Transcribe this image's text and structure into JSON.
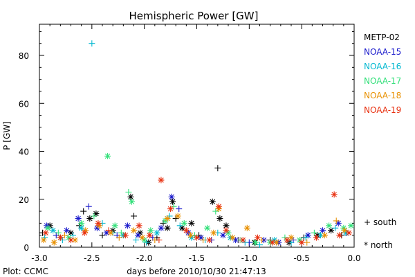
{
  "chart_data": {
    "type": "scatter",
    "title": "Hemispheric Power [GW]",
    "xlabel": "days before 2010/10/30 21:47:13",
    "ylabel": "P [GW]",
    "xlim": [
      -3.0,
      0.0
    ],
    "ylim": [
      0,
      93
    ],
    "x_ticks": [
      "-3.0",
      "-2.5",
      "-2.0",
      "-1.5",
      "-1.0",
      "-0.5",
      "0.0"
    ],
    "y_ticks": [
      "0",
      "20",
      "40",
      "60",
      "80"
    ],
    "grid": false,
    "legend_position": "right",
    "markers": {
      "south": {
        "symbol": "+",
        "label": "+ south"
      },
      "north": {
        "symbol": "*",
        "label": "* north"
      }
    },
    "footer": "Plot: CCMC",
    "series": [
      {
        "name": "METP-02",
        "color": "#000000",
        "points": [
          {
            "x": -2.97,
            "y": 6,
            "h": "south"
          },
          {
            "x": -2.9,
            "y": 9,
            "h": "north"
          },
          {
            "x": -2.8,
            "y": 4,
            "h": "south"
          },
          {
            "x": -2.7,
            "y": 6,
            "h": "north"
          },
          {
            "x": -2.62,
            "y": 9,
            "h": "south"
          },
          {
            "x": -2.58,
            "y": 15,
            "h": "south"
          },
          {
            "x": -2.52,
            "y": 12,
            "h": "north"
          },
          {
            "x": -2.46,
            "y": 14,
            "h": "north"
          },
          {
            "x": -2.4,
            "y": 5,
            "h": "south"
          },
          {
            "x": -2.3,
            "y": 7,
            "h": "north"
          },
          {
            "x": -2.13,
            "y": 21,
            "h": "north"
          },
          {
            "x": -2.1,
            "y": 13,
            "h": "south"
          },
          {
            "x": -2.04,
            "y": 6,
            "h": "north"
          },
          {
            "x": -1.96,
            "y": 2,
            "h": "north"
          },
          {
            "x": -1.88,
            "y": 4,
            "h": "south"
          },
          {
            "x": -1.82,
            "y": 10,
            "h": "south"
          },
          {
            "x": -1.78,
            "y": 8,
            "h": "north"
          },
          {
            "x": -1.73,
            "y": 19,
            "h": "north"
          },
          {
            "x": -1.7,
            "y": 12,
            "h": "south"
          },
          {
            "x": -1.64,
            "y": 8,
            "h": "north"
          },
          {
            "x": -1.55,
            "y": 10,
            "h": "north"
          },
          {
            "x": -1.48,
            "y": 5,
            "h": "south"
          },
          {
            "x": -1.35,
            "y": 19,
            "h": "north"
          },
          {
            "x": -1.3,
            "y": 33,
            "h": "south"
          },
          {
            "x": -1.28,
            "y": 12,
            "h": "north"
          },
          {
            "x": -1.22,
            "y": 9,
            "h": "north"
          },
          {
            "x": -1.1,
            "y": 3,
            "h": "south"
          },
          {
            "x": -0.95,
            "y": 2,
            "h": "north"
          },
          {
            "x": -0.8,
            "y": 3,
            "h": "south"
          },
          {
            "x": -0.62,
            "y": 2,
            "h": "north"
          },
          {
            "x": -0.48,
            "y": 4,
            "h": "south"
          },
          {
            "x": -0.35,
            "y": 5,
            "h": "north"
          },
          {
            "x": -0.22,
            "y": 7,
            "h": "north"
          },
          {
            "x": -0.12,
            "y": 5,
            "h": "south"
          }
        ]
      },
      {
        "name": "NOAA-15",
        "color": "#1a1acc",
        "points": [
          {
            "x": -2.93,
            "y": 9,
            "h": "north"
          },
          {
            "x": -2.84,
            "y": 5,
            "h": "south"
          },
          {
            "x": -2.74,
            "y": 7,
            "h": "north"
          },
          {
            "x": -2.63,
            "y": 12,
            "h": "north"
          },
          {
            "x": -2.53,
            "y": 17,
            "h": "south"
          },
          {
            "x": -2.45,
            "y": 8,
            "h": "north"
          },
          {
            "x": -2.36,
            "y": 6,
            "h": "north"
          },
          {
            "x": -2.26,
            "y": 5,
            "h": "south"
          },
          {
            "x": -2.16,
            "y": 9,
            "h": "north"
          },
          {
            "x": -2.06,
            "y": 5,
            "h": "north"
          },
          {
            "x": -1.92,
            "y": 4,
            "h": "south"
          },
          {
            "x": -1.84,
            "y": 8,
            "h": "north"
          },
          {
            "x": -1.74,
            "y": 21,
            "h": "north"
          },
          {
            "x": -1.67,
            "y": 16,
            "h": "south"
          },
          {
            "x": -1.58,
            "y": 6,
            "h": "north"
          },
          {
            "x": -1.46,
            "y": 4,
            "h": "north"
          },
          {
            "x": -1.36,
            "y": 3,
            "h": "south"
          },
          {
            "x": -1.25,
            "y": 5,
            "h": "north"
          },
          {
            "x": -1.13,
            "y": 3,
            "h": "north"
          },
          {
            "x": -1.0,
            "y": 2,
            "h": "south"
          },
          {
            "x": -0.86,
            "y": 3,
            "h": "north"
          },
          {
            "x": -0.72,
            "y": 2,
            "h": "north"
          },
          {
            "x": -0.58,
            "y": 3,
            "h": "south"
          },
          {
            "x": -0.44,
            "y": 5,
            "h": "north"
          },
          {
            "x": -0.3,
            "y": 7,
            "h": "north"
          },
          {
            "x": -0.15,
            "y": 10,
            "h": "north"
          },
          {
            "x": -0.07,
            "y": 6,
            "h": "south"
          }
        ]
      },
      {
        "name": "NOAA-16",
        "color": "#00b8d0",
        "points": [
          {
            "x": -2.5,
            "y": 85,
            "h": "south"
          },
          {
            "x": -2.95,
            "y": 4,
            "h": "south"
          },
          {
            "x": -2.87,
            "y": 7,
            "h": "north"
          },
          {
            "x": -2.78,
            "y": 3,
            "h": "south"
          },
          {
            "x": -2.68,
            "y": 5,
            "h": "south"
          },
          {
            "x": -2.6,
            "y": 8,
            "h": "north"
          },
          {
            "x": -2.4,
            "y": 10,
            "h": "south"
          },
          {
            "x": -2.3,
            "y": 6,
            "h": "south"
          },
          {
            "x": -2.2,
            "y": 5,
            "h": "north"
          },
          {
            "x": -2.08,
            "y": 3,
            "h": "south"
          },
          {
            "x": -1.98,
            "y": 2,
            "h": "south"
          },
          {
            "x": -1.88,
            "y": 6,
            "h": "north"
          },
          {
            "x": -1.76,
            "y": 13,
            "h": "south"
          },
          {
            "x": -1.66,
            "y": 9,
            "h": "south"
          },
          {
            "x": -1.55,
            "y": 4,
            "h": "north"
          },
          {
            "x": -1.42,
            "y": 3,
            "h": "south"
          },
          {
            "x": -1.3,
            "y": 6,
            "h": "south"
          },
          {
            "x": -1.18,
            "y": 4,
            "h": "north"
          },
          {
            "x": -1.04,
            "y": 2,
            "h": "south"
          },
          {
            "x": -0.9,
            "y": 1,
            "h": "south"
          },
          {
            "x": -0.76,
            "y": 3,
            "h": "north"
          },
          {
            "x": -0.6,
            "y": 2,
            "h": "south"
          },
          {
            "x": -0.46,
            "y": 4,
            "h": "south"
          },
          {
            "x": -0.32,
            "y": 5,
            "h": "north"
          },
          {
            "x": -0.18,
            "y": 8,
            "h": "south"
          },
          {
            "x": -0.08,
            "y": 6,
            "h": "north"
          }
        ]
      },
      {
        "name": "NOAA-17",
        "color": "#33e07a",
        "points": [
          {
            "x": -2.35,
            "y": 38,
            "h": "north"
          },
          {
            "x": -2.15,
            "y": 23,
            "h": "south"
          },
          {
            "x": -2.12,
            "y": 19,
            "h": "north"
          },
          {
            "x": -2.92,
            "y": 8,
            "h": "north"
          },
          {
            "x": -2.82,
            "y": 6,
            "h": "south"
          },
          {
            "x": -2.72,
            "y": 4,
            "h": "north"
          },
          {
            "x": -2.6,
            "y": 10,
            "h": "north"
          },
          {
            "x": -2.48,
            "y": 13,
            "h": "south"
          },
          {
            "x": -2.28,
            "y": 9,
            "h": "north"
          },
          {
            "x": -2.22,
            "y": 6,
            "h": "south"
          },
          {
            "x": -2.0,
            "y": 3,
            "h": "north"
          },
          {
            "x": -1.94,
            "y": 7,
            "h": "north"
          },
          {
            "x": -1.8,
            "y": 11,
            "h": "north"
          },
          {
            "x": -1.72,
            "y": 17,
            "h": "south"
          },
          {
            "x": -1.62,
            "y": 10,
            "h": "north"
          },
          {
            "x": -1.52,
            "y": 5,
            "h": "south"
          },
          {
            "x": -1.4,
            "y": 8,
            "h": "north"
          },
          {
            "x": -1.32,
            "y": 15,
            "h": "south"
          },
          {
            "x": -1.2,
            "y": 6,
            "h": "north"
          },
          {
            "x": -1.08,
            "y": 3,
            "h": "south"
          },
          {
            "x": -0.94,
            "y": 2,
            "h": "north"
          },
          {
            "x": -0.8,
            "y": 2,
            "h": "north"
          },
          {
            "x": -0.66,
            "y": 4,
            "h": "south"
          },
          {
            "x": -0.52,
            "y": 3,
            "h": "north"
          },
          {
            "x": -0.38,
            "y": 6,
            "h": "south"
          },
          {
            "x": -0.24,
            "y": 9,
            "h": "north"
          },
          {
            "x": -0.1,
            "y": 8,
            "h": "north"
          },
          {
            "x": -0.03,
            "y": 9,
            "h": "north"
          }
        ]
      },
      {
        "name": "NOAA-18",
        "color": "#e89000",
        "points": [
          {
            "x": -2.96,
            "y": 3,
            "h": "north"
          },
          {
            "x": -2.86,
            "y": 2,
            "h": "north"
          },
          {
            "x": -2.76,
            "y": 5,
            "h": "south"
          },
          {
            "x": -2.66,
            "y": 3,
            "h": "north"
          },
          {
            "x": -2.56,
            "y": 7,
            "h": "north"
          },
          {
            "x": -2.43,
            "y": 9,
            "h": "north"
          },
          {
            "x": -2.32,
            "y": 6,
            "h": "north"
          },
          {
            "x": -2.24,
            "y": 4,
            "h": "south"
          },
          {
            "x": -2.1,
            "y": 7,
            "h": "north"
          },
          {
            "x": -2.02,
            "y": 4,
            "h": "north"
          },
          {
            "x": -1.9,
            "y": 3,
            "h": "south"
          },
          {
            "x": -1.78,
            "y": 12,
            "h": "north"
          },
          {
            "x": -1.68,
            "y": 13,
            "h": "north"
          },
          {
            "x": -1.56,
            "y": 5,
            "h": "north"
          },
          {
            "x": -1.44,
            "y": 3,
            "h": "south"
          },
          {
            "x": -1.34,
            "y": 6,
            "h": "north"
          },
          {
            "x": -1.29,
            "y": 16,
            "h": "north"
          },
          {
            "x": -1.16,
            "y": 4,
            "h": "north"
          },
          {
            "x": -1.02,
            "y": 8,
            "h": "north"
          },
          {
            "x": -0.88,
            "y": 3,
            "h": "south"
          },
          {
            "x": -0.74,
            "y": 2,
            "h": "north"
          },
          {
            "x": -0.6,
            "y": 4,
            "h": "north"
          },
          {
            "x": -0.45,
            "y": 2,
            "h": "south"
          },
          {
            "x": -0.28,
            "y": 5,
            "h": "north"
          },
          {
            "x": -0.17,
            "y": 11,
            "h": "south"
          },
          {
            "x": -0.09,
            "y": 7,
            "h": "north"
          }
        ]
      },
      {
        "name": "NOAA-19",
        "color": "#e83010",
        "points": [
          {
            "x": -1.84,
            "y": 28,
            "h": "north"
          },
          {
            "x": -0.19,
            "y": 22,
            "h": "north"
          },
          {
            "x": -2.94,
            "y": 6,
            "h": "north"
          },
          {
            "x": -2.8,
            "y": 4,
            "h": "north"
          },
          {
            "x": -2.7,
            "y": 3,
            "h": "north"
          },
          {
            "x": -2.57,
            "y": 6,
            "h": "north"
          },
          {
            "x": -2.44,
            "y": 10,
            "h": "north"
          },
          {
            "x": -2.34,
            "y": 7,
            "h": "south"
          },
          {
            "x": -2.18,
            "y": 5,
            "h": "north"
          },
          {
            "x": -2.05,
            "y": 9,
            "h": "north"
          },
          {
            "x": -1.95,
            "y": 5,
            "h": "north"
          },
          {
            "x": -1.86,
            "y": 3,
            "h": "south"
          },
          {
            "x": -1.75,
            "y": 16,
            "h": "north"
          },
          {
            "x": -1.6,
            "y": 7,
            "h": "north"
          },
          {
            "x": -1.5,
            "y": 4,
            "h": "north"
          },
          {
            "x": -1.38,
            "y": 3,
            "h": "north"
          },
          {
            "x": -1.29,
            "y": 17,
            "h": "north"
          },
          {
            "x": -1.22,
            "y": 7,
            "h": "north"
          },
          {
            "x": -1.06,
            "y": 3,
            "h": "north"
          },
          {
            "x": -0.92,
            "y": 4,
            "h": "north"
          },
          {
            "x": -0.78,
            "y": 2,
            "h": "north"
          },
          {
            "x": -0.64,
            "y": 3,
            "h": "north"
          },
          {
            "x": -0.5,
            "y": 2,
            "h": "north"
          },
          {
            "x": -0.36,
            "y": 4,
            "h": "north"
          },
          {
            "x": -0.14,
            "y": 5,
            "h": "north"
          },
          {
            "x": -0.05,
            "y": 6,
            "h": "north"
          }
        ]
      }
    ]
  }
}
